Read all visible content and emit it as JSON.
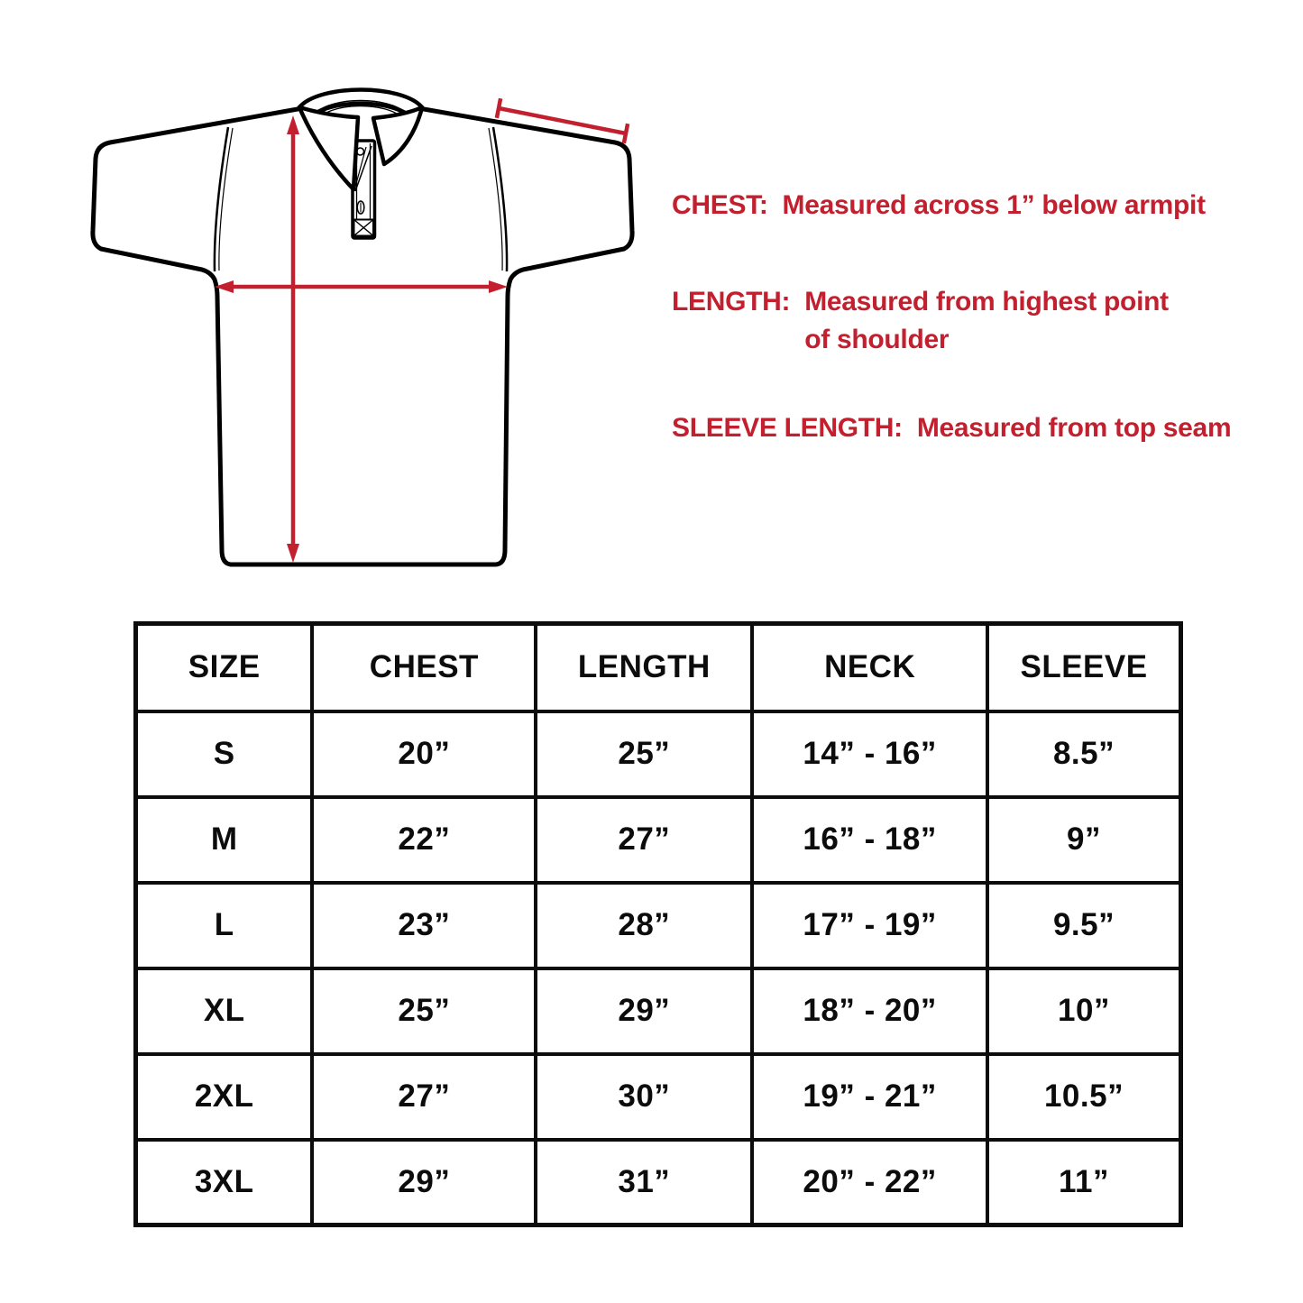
{
  "diagram": {
    "name": "polo shirt measurement diagram",
    "line_color": "#000000",
    "arrow_color": "#C2202F",
    "measure_arrows": [
      "length-arrow",
      "chest-arrow",
      "sleeve-dimension-line"
    ]
  },
  "notes": [
    {
      "label": "CHEST:",
      "text": "Measured across 1” below armpit",
      "text2": ""
    },
    {
      "label": "LENGTH:",
      "text": "Measured from highest point",
      "text2": "of shoulder"
    },
    {
      "label": "SLEEVE LENGTH:",
      "text": "Measured from top seam",
      "text2": ""
    }
  ],
  "size_chart": {
    "columns": [
      "SIZE",
      "CHEST",
      "LENGTH",
      "NECK",
      "SLEEVE"
    ],
    "rows": [
      [
        "S",
        "20”",
        "25”",
        "14” - 16”",
        "8.5”"
      ],
      [
        "M",
        "22”",
        "27”",
        "16” - 18”",
        "9”"
      ],
      [
        "L",
        "23”",
        "28”",
        "17” - 19”",
        "9.5”"
      ],
      [
        "XL",
        "25”",
        "29”",
        "18” - 20”",
        "10”"
      ],
      [
        "2XL",
        "27”",
        "30”",
        "19” - 21”",
        "10.5”"
      ],
      [
        "3XL",
        "29”",
        "31”",
        "20” - 22”",
        "11”"
      ]
    ]
  }
}
